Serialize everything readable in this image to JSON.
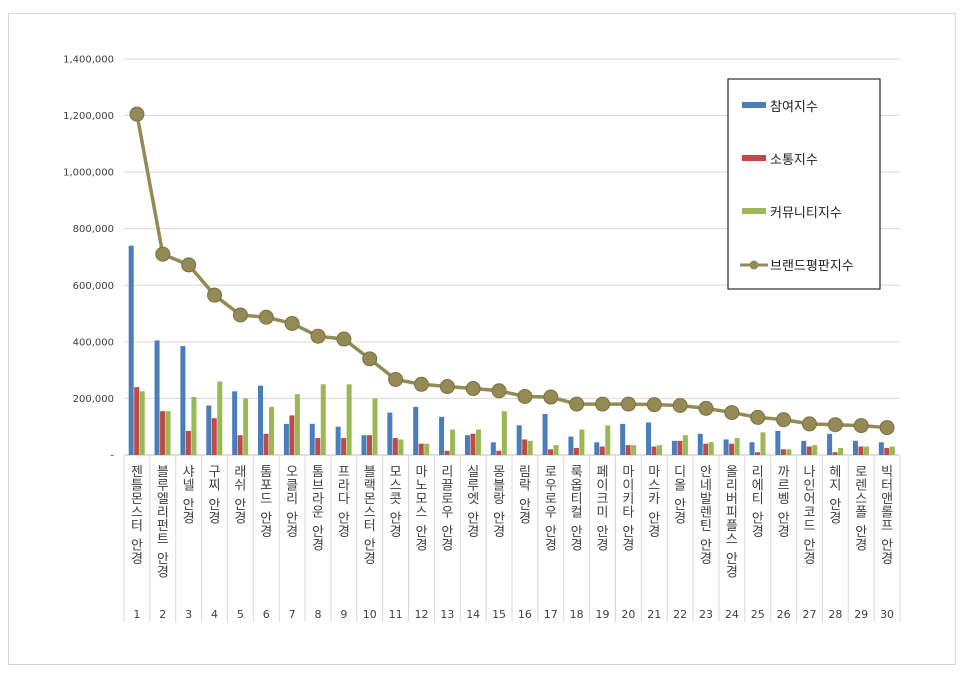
{
  "chart_data": {
    "type": "bar",
    "title": "",
    "xlabel": "",
    "ylabel": "",
    "ylim": [
      0,
      1400000
    ],
    "yticks": [
      {
        "value": 0,
        "label": "-"
      },
      {
        "value": 200000,
        "label": "200,000"
      },
      {
        "value": 400000,
        "label": "400,000"
      },
      {
        "value": 600000,
        "label": "600,000"
      },
      {
        "value": 800000,
        "label": "800,000"
      },
      {
        "value": 1000000,
        "label": "1,000,000"
      },
      {
        "value": 1200000,
        "label": "1,200,000"
      },
      {
        "value": 1400000,
        "label": "1,400,000"
      }
    ],
    "grid": true,
    "legend_position": "top-right",
    "categories": [
      "젠틀몬스터 안경",
      "블루엘리펀트 안경",
      "샤넬 안경",
      "구찌 안경",
      "래쉬 안경",
      "톰포드 안경",
      "오클리 안경",
      "톰브라운 안경",
      "프라다 안경",
      "블랙몬스터 안경",
      "모스콧 안경",
      "마노모스 안경",
      "리끌로우 안경",
      "실루엣 안경",
      "몽블랑 안경",
      "림락 안경",
      "로우로우 안경",
      "룩옵티컬 안경",
      "페이크미 안경",
      "마이키타 안경",
      "마스카 안경",
      "디올 안경",
      "안네발렌틴 안경",
      "올리버피플스 안경",
      "리에티 안경",
      "까르벵 안경",
      "나인어코드 안경",
      "헤지 안경",
      "로렌스폴 안경",
      "빅터앤롤프 안경"
    ],
    "ranks": [
      "1",
      "2",
      "3",
      "4",
      "5",
      "6",
      "7",
      "8",
      "9",
      "10",
      "11",
      "12",
      "13",
      "14",
      "15",
      "16",
      "17",
      "18",
      "19",
      "20",
      "21",
      "22",
      "23",
      "24",
      "25",
      "26",
      "27",
      "28",
      "29",
      "30"
    ],
    "series": [
      {
        "name": "참여지수",
        "kind": "bar",
        "color": "#4a7ebb",
        "values": [
          740000,
          405000,
          385000,
          175000,
          225000,
          245000,
          110000,
          110000,
          100000,
          70000,
          150000,
          170000,
          135000,
          70000,
          45000,
          105000,
          145000,
          65000,
          45000,
          110000,
          115000,
          50000,
          75000,
          55000,
          45000,
          85000,
          50000,
          75000,
          50000,
          45000
        ]
      },
      {
        "name": "소통지수",
        "kind": "bar",
        "color": "#be4b48",
        "values": [
          240000,
          155000,
          85000,
          130000,
          70000,
          75000,
          140000,
          60000,
          60000,
          70000,
          60000,
          40000,
          15000,
          75000,
          15000,
          55000,
          20000,
          25000,
          30000,
          35000,
          30000,
          50000,
          40000,
          40000,
          10000,
          20000,
          30000,
          10000,
          30000,
          25000
        ]
      },
      {
        "name": "커뮤니티지수",
        "kind": "bar",
        "color": "#98b954",
        "values": [
          225000,
          155000,
          205000,
          260000,
          200000,
          170000,
          215000,
          250000,
          250000,
          200000,
          55000,
          40000,
          90000,
          90000,
          155000,
          50000,
          35000,
          90000,
          105000,
          35000,
          35000,
          70000,
          45000,
          60000,
          80000,
          20000,
          35000,
          25000,
          30000,
          30000
        ]
      },
      {
        "name": "브랜드평판지수",
        "kind": "line",
        "color": "#948a54",
        "values": [
          1205000,
          710000,
          672000,
          565000,
          495000,
          487000,
          465000,
          420000,
          410000,
          340000,
          267000,
          250000,
          242000,
          235000,
          227000,
          207000,
          205000,
          180000,
          180000,
          180000,
          178000,
          175000,
          165000,
          150000,
          133000,
          125000,
          110000,
          107000,
          104000,
          97000
        ]
      }
    ]
  }
}
